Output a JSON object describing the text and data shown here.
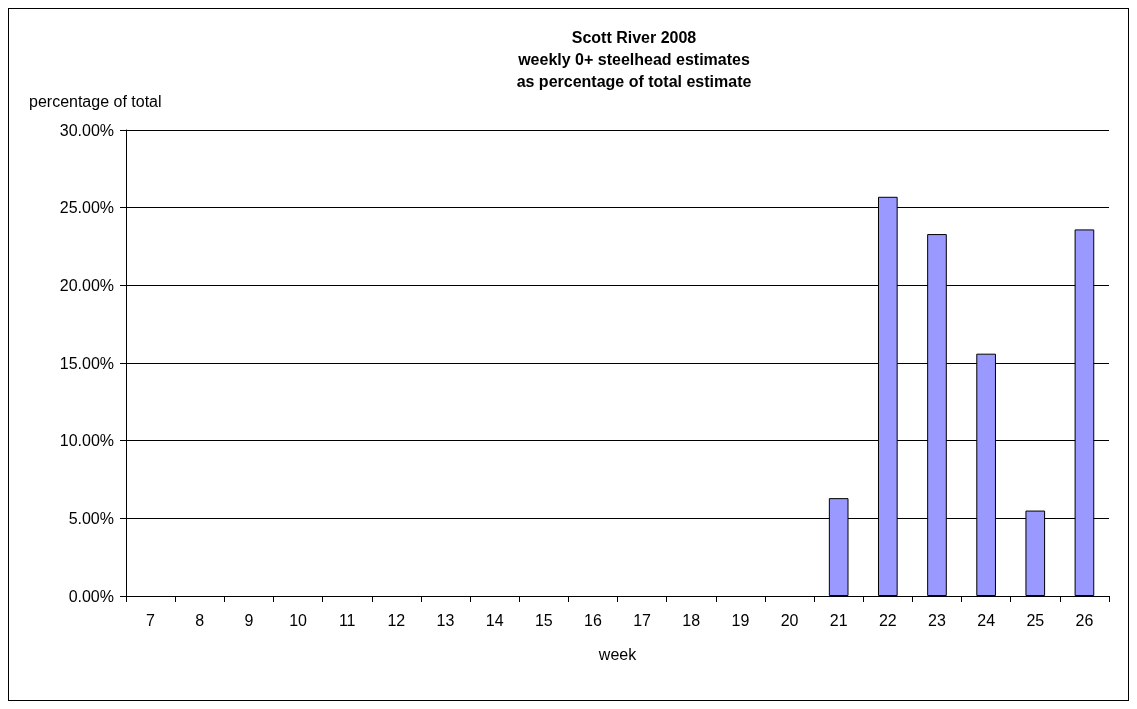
{
  "chart_data": {
    "type": "bar",
    "title": "Scott River 2008\nweekly 0+ steelhead estimates\nas percentage of total estimate",
    "xlabel": "week",
    "ylabel": "percentage of total",
    "categories": [
      "7",
      "8",
      "9",
      "10",
      "11",
      "12",
      "13",
      "14",
      "15",
      "16",
      "17",
      "18",
      "19",
      "20",
      "21",
      "22",
      "23",
      "24",
      "25",
      "26"
    ],
    "values": [
      0,
      0,
      0,
      0,
      0,
      0,
      0,
      0,
      0,
      0,
      0,
      0,
      0,
      0,
      6.3,
      25.7,
      23.3,
      15.6,
      5.5,
      23.6
    ],
    "color": "#9999ff",
    "ylim": [
      0,
      30
    ],
    "yticks": [
      {
        "value": 0,
        "label": "0.00%"
      },
      {
        "value": 5,
        "label": "5.00%"
      },
      {
        "value": 10,
        "label": "10.00%"
      },
      {
        "value": 15,
        "label": "15.00%"
      },
      {
        "value": 20,
        "label": "20.00%"
      },
      {
        "value": 25,
        "label": "25.00%"
      },
      {
        "value": 30,
        "label": "30.00%"
      }
    ],
    "grid": "y"
  }
}
